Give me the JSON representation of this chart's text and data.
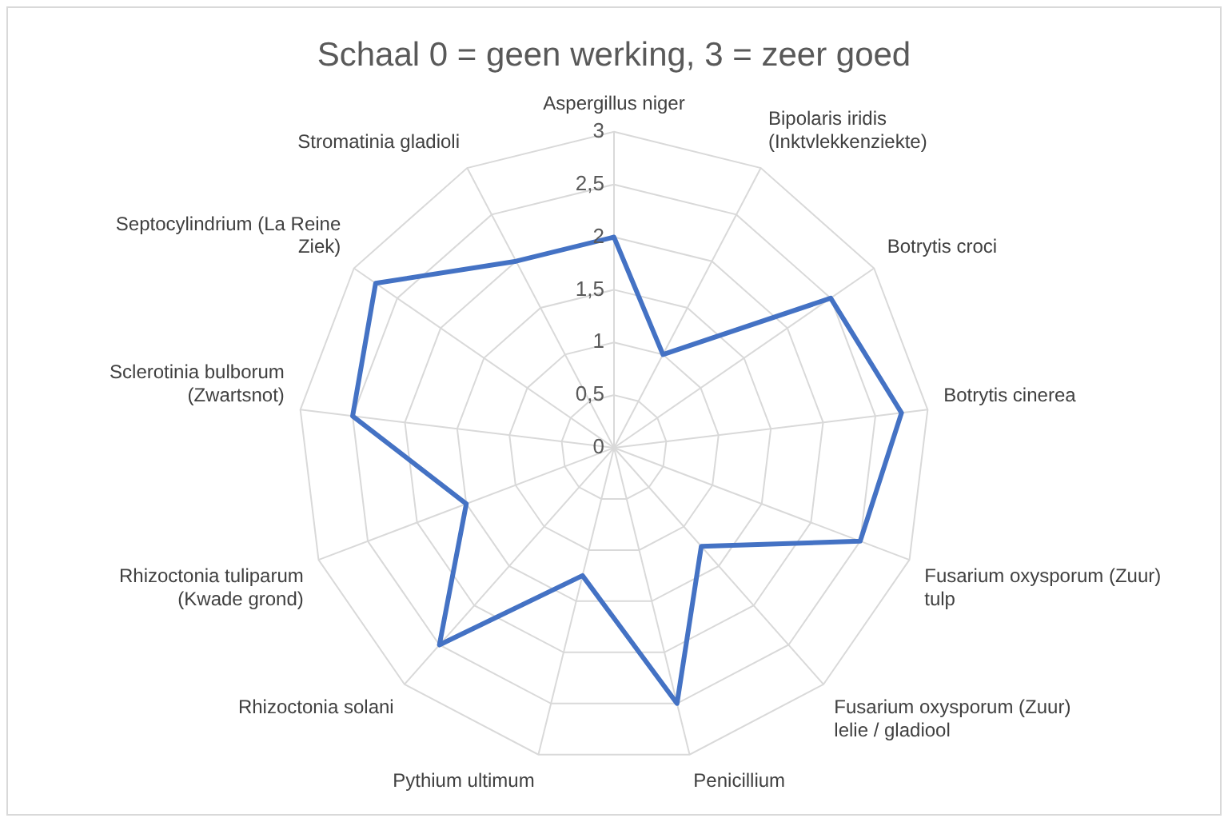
{
  "chart_data": {
    "type": "radar",
    "title": "Schaal 0 = geen werking, 3 = zeer goed",
    "categories": [
      "Aspergillus niger",
      "Bipolaris iridis (Inktvlekkenziekte)",
      "Botrytis croci",
      "Botrytis cinerea",
      "Fusarium oxysporum (Zuur) tulp",
      "Fusarium oxysporum (Zuur) lelie / gladiool",
      "Penicillium",
      "Pythium ultimum",
      "Rhizoctonia solani",
      "Rhizoctonia tuliparum (Kwade grond)",
      "Sclerotinia bulborum (Zwartsnot)",
      "Septocylindrium (La Reine Ziek)",
      "Stromatinia gladioli"
    ],
    "series": [
      {
        "color": "#4472c4",
        "values": [
          2,
          1,
          2.5,
          2.75,
          2.5,
          1.25,
          2.5,
          1.25,
          2.5,
          1.5,
          2.5,
          2.75,
          2
        ]
      }
    ],
    "ylim": [
      0,
      3
    ],
    "yticks": [
      0,
      {
        "value": 0.5,
        "label": "0,5"
      },
      1,
      {
        "value": 1.5,
        "label": "1,5"
      },
      2,
      {
        "value": 2.5,
        "label": "2,5"
      },
      3
    ],
    "grid": true,
    "legend": false,
    "marker": "none",
    "line_style": "solid"
  }
}
